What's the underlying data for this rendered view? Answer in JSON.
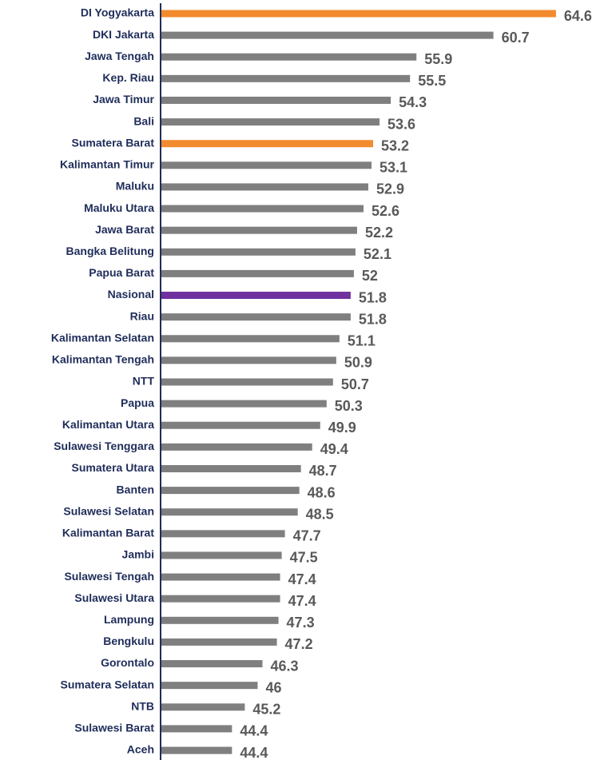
{
  "chart_data": {
    "type": "hbar",
    "categories": [
      "DI Yogyakarta",
      "DKI Jakarta",
      "Jawa Tengah",
      "Kep. Riau",
      "Jawa Timur",
      "Bali",
      "Sumatera Barat",
      "Kalimantan Timur",
      "Maluku",
      "Maluku Utara",
      "Jawa Barat",
      "Bangka Belitung",
      "Papua Barat",
      "Nasional",
      "Riau",
      "Kalimantan Selatan",
      "Kalimantan Tengah",
      "NTT",
      "Papua",
      "Kalimantan Utara",
      "Sulawesi Tenggara",
      "Sumatera Utara",
      "Banten",
      "Sulawesi Selatan",
      "Kalimantan Barat",
      "Jambi",
      "Sulawesi Tengah",
      "Sulawesi Utara",
      "Lampung",
      "Bengkulu",
      "Gorontalo",
      "Sumatera Selatan",
      "NTB",
      "Sulawesi Barat",
      "Aceh"
    ],
    "values": [
      64.6,
      60.7,
      55.9,
      55.5,
      54.3,
      53.6,
      53.2,
      53.1,
      52.9,
      52.6,
      52.2,
      52.1,
      52,
      51.8,
      51.8,
      51.1,
      50.9,
      50.7,
      50.3,
      49.9,
      49.4,
      48.7,
      48.6,
      48.5,
      47.7,
      47.5,
      47.4,
      47.4,
      47.3,
      47.2,
      46.3,
      46,
      45.2,
      44.4,
      44.4
    ],
    "colors": [
      "#f28a2e",
      "#7f7f7f",
      "#7f7f7f",
      "#7f7f7f",
      "#7f7f7f",
      "#7f7f7f",
      "#f28a2e",
      "#7f7f7f",
      "#7f7f7f",
      "#7f7f7f",
      "#7f7f7f",
      "#7f7f7f",
      "#7f7f7f",
      "#7030a0",
      "#7f7f7f",
      "#7f7f7f",
      "#7f7f7f",
      "#7f7f7f",
      "#7f7f7f",
      "#7f7f7f",
      "#7f7f7f",
      "#7f7f7f",
      "#7f7f7f",
      "#7f7f7f",
      "#7f7f7f",
      "#7f7f7f",
      "#7f7f7f",
      "#7f7f7f",
      "#7f7f7f",
      "#7f7f7f",
      "#7f7f7f",
      "#7f7f7f",
      "#7f7f7f",
      "#7f7f7f",
      "#7f7f7f"
    ],
    "xlim": [
      40,
      66
    ]
  }
}
